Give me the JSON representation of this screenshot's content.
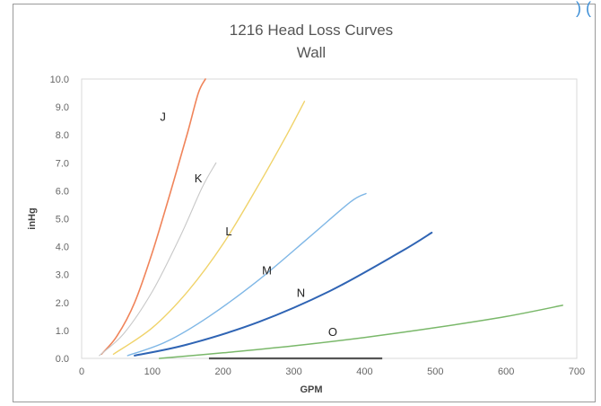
{
  "chart_data": {
    "type": "line",
    "title": "1216 Head Loss Curves",
    "subtitle": "Wall",
    "xlabel": "GPM",
    "ylabel": "inHg",
    "xlim": [
      0,
      700
    ],
    "ylim": [
      0,
      10
    ],
    "x_ticks": [
      "0",
      "100",
      "200",
      "300",
      "400",
      "500",
      "600",
      "700"
    ],
    "y_ticks": [
      "0.0",
      "1.0",
      "2.0",
      "3.0",
      "4.0",
      "5.0",
      "6.0",
      "7.0",
      "8.0",
      "9.0",
      "10.0"
    ],
    "grid": false,
    "legend": "none",
    "series": [
      {
        "name": "J",
        "color": "#f0845a",
        "width": 1.6,
        "x": [
          28,
          50,
          75,
          100,
          125,
          150,
          165,
          175
        ],
        "y": [
          0.15,
          0.8,
          2.0,
          3.8,
          5.9,
          8.1,
          9.5,
          10.0
        ],
        "label_at": [
          115,
          8.5
        ]
      },
      {
        "name": "K",
        "color": "#c8c8c8",
        "width": 1.1,
        "x": [
          25,
          60,
          100,
          140,
          170,
          190
        ],
        "y": [
          0.1,
          0.9,
          2.4,
          4.4,
          6.1,
          7.0
        ],
        "label_at": [
          165,
          6.3
        ]
      },
      {
        "name": "L",
        "color": "#f0d36a",
        "width": 1.4,
        "x": [
          45,
          100,
          150,
          200,
          250,
          290,
          315
        ],
        "y": [
          0.15,
          1.1,
          2.4,
          4.1,
          6.2,
          8.0,
          9.2
        ],
        "label_at": [
          208,
          4.4
        ]
      },
      {
        "name": "M",
        "color": "#7fb7e6",
        "width": 1.4,
        "x": [
          65,
          120,
          180,
          250,
          320,
          380,
          402
        ],
        "y": [
          0.1,
          0.6,
          1.5,
          2.8,
          4.3,
          5.6,
          5.9
        ],
        "label_at": [
          262,
          3.0
        ]
      },
      {
        "name": "N",
        "color": "#2f64b4",
        "width": 2.0,
        "x": [
          75,
          150,
          250,
          350,
          450,
          495
        ],
        "y": [
          0.1,
          0.5,
          1.3,
          2.4,
          3.8,
          4.5
        ],
        "label_at": [
          310,
          2.2
        ]
      },
      {
        "name": "O",
        "color": "#7ab86a",
        "width": 1.5,
        "x": [
          110,
          200,
          300,
          400,
          500,
          600,
          680
        ],
        "y": [
          0.0,
          0.2,
          0.45,
          0.75,
          1.1,
          1.5,
          1.9
        ],
        "label_at": [
          355,
          0.8
        ]
      }
    ]
  }
}
